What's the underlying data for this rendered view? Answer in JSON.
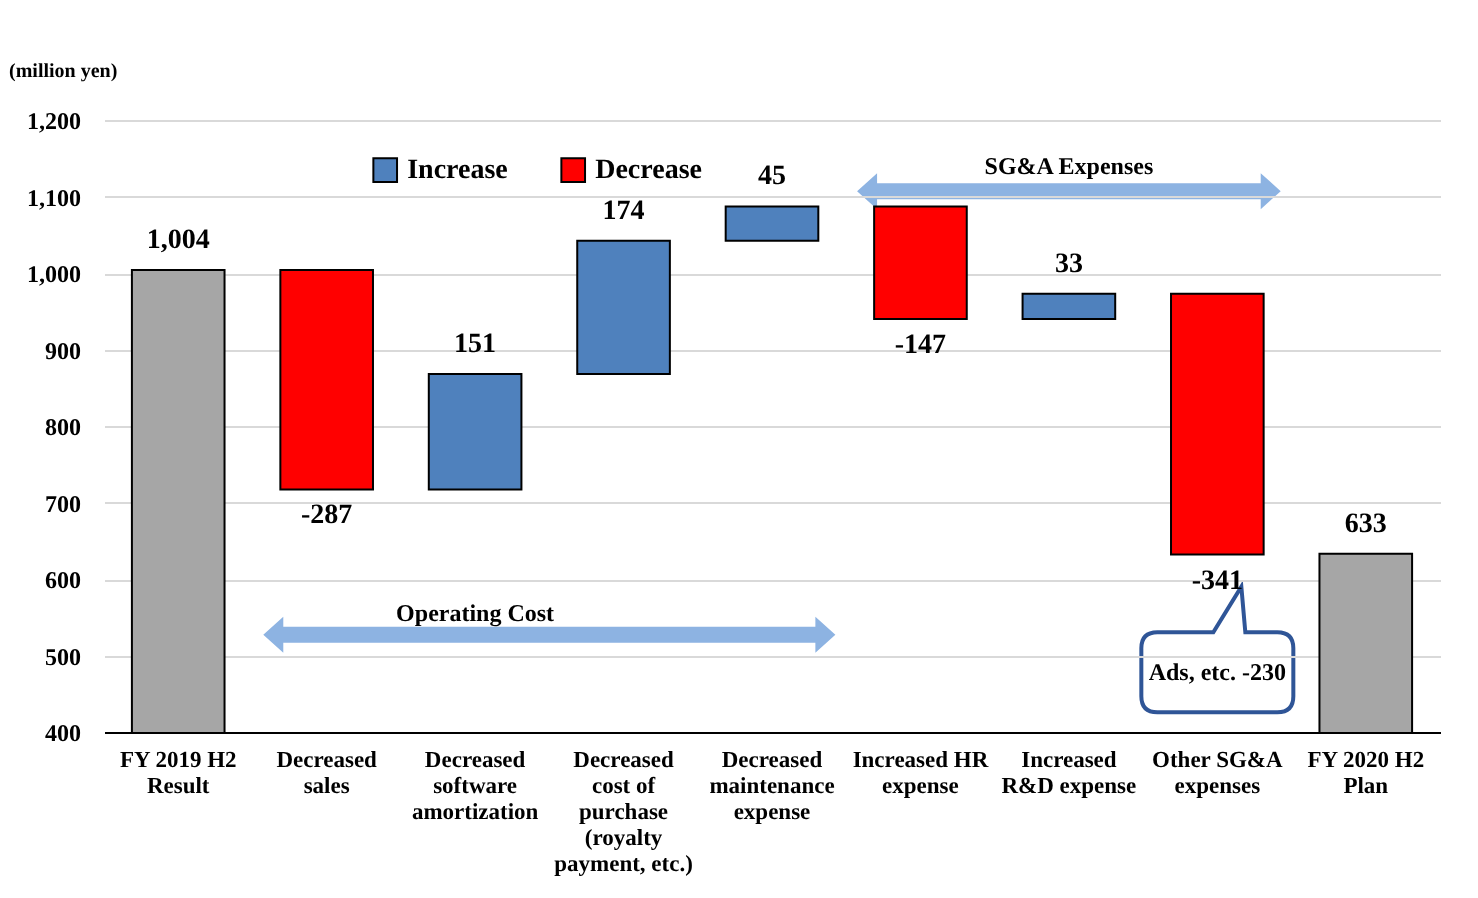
{
  "chart_data": {
    "type": "bar",
    "ylabel": "(million yen)",
    "categories": [
      "FY 2019 H2 Result",
      "Decreased sales",
      "Decreased software amortization",
      "Decreased cost of purchase (royalty payment, etc.)",
      "Decreased maintenance expense",
      "Increased HR expense",
      "Increased R&D expense",
      "Other SG&A expenses",
      "FY 2020 H2 Plan"
    ],
    "ylim": [
      400,
      1200
    ],
    "yticks": [
      400,
      500,
      600,
      700,
      800,
      900,
      {
        "value": 1000,
        "label": "1,000"
      },
      {
        "value": 1100,
        "label": "1,100"
      },
      {
        "value": 1200,
        "label": "1,200"
      }
    ],
    "grid": "y",
    "legend": "top",
    "annotations": [
      "Operating Cost",
      "SG&A Expenses",
      "Ads, etc. -230"
    ],
    "series": [
      {
        "name": "Increase",
        "color": "#4f81bd",
        "values": [
          null,
          null,
          151,
          174,
          45,
          null,
          33,
          null,
          null
        ],
        "base": [
          null,
          null,
          717,
          868,
          1042,
          null,
          940,
          null,
          null
        ],
        "value_labels": [
          null,
          null,
          "151",
          "174",
          "45",
          null,
          "33",
          null,
          null
        ]
      },
      {
        "name": "Decrease",
        "color": "#ff0000",
        "values": [
          null,
          -287,
          null,
          null,
          null,
          -147,
          null,
          -341,
          null
        ],
        "base": [
          null,
          1004,
          null,
          null,
          null,
          1087,
          null,
          973,
          null
        ],
        "value_labels": [
          null,
          "-287",
          null,
          null,
          null,
          "-147",
          null,
          "-341",
          null
        ]
      },
      {
        "color": "#a6a6a6",
        "values": [
          1004,
          null,
          null,
          null,
          null,
          null,
          null,
          null,
          633
        ],
        "value_labels": [
          "1,004",
          null,
          null,
          null,
          null,
          null,
          null,
          null,
          "633"
        ]
      }
    ]
  }
}
